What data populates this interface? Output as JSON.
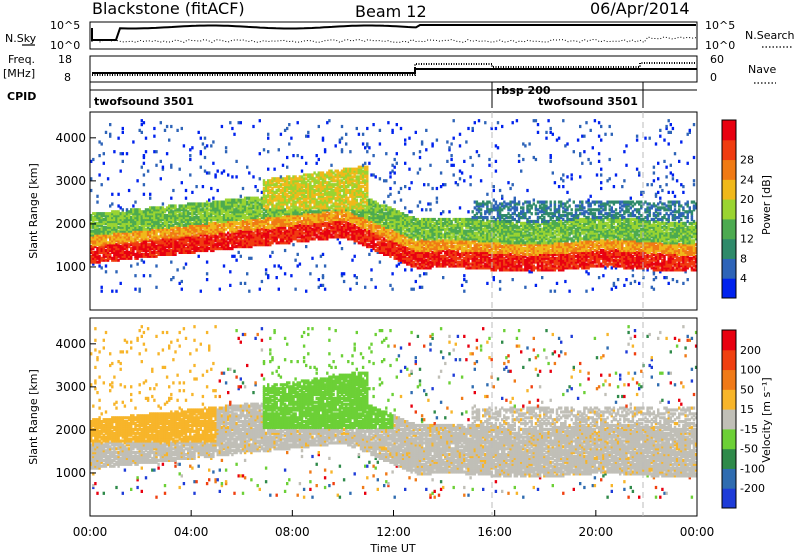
{
  "header": {
    "station": "Blackstone (fitACF)",
    "beam": "Beam 12",
    "date": "06/Apr/2014"
  },
  "strip_panels": {
    "left_labels": {
      "nsky": "N.Sky",
      "freq_line1": "Freq.",
      "freq_line2": "[MHz]",
      "cpid": "CPID"
    },
    "right_labels": {
      "nsearch": "N.Search",
      "nave": "Nave"
    },
    "noise_axis": {
      "left_ticks": [
        "10^5",
        "10^0"
      ],
      "right_ticks": [
        "10^5",
        "10^0"
      ]
    },
    "freq_axis": {
      "left_ticks": [
        "18",
        "8"
      ],
      "right_ticks": [
        "60",
        "0"
      ]
    },
    "cpid_segments": [
      {
        "label": "twofsound 3501",
        "start_hour": 0,
        "end_hour": 16
      },
      {
        "label": "rbsp 200",
        "start_hour": 16,
        "end_hour": 22
      },
      {
        "label": "twofsound 3501",
        "start_hour": 16,
        "end_hour": 22
      }
    ]
  },
  "chart_data": [
    {
      "type": "heatmap",
      "parameter": "power",
      "ylabel": "Slant Range [km]",
      "ylim": [
        0,
        4600
      ],
      "yticks": [
        1000,
        2000,
        3000,
        4000
      ],
      "xlim": [
        0,
        24
      ],
      "colorbar": {
        "label": "Power [dB]",
        "ticks": [
          "4",
          "8",
          "12",
          "16",
          "20",
          "24",
          "28"
        ],
        "colors": [
          "#0022ee",
          "#2e64b8",
          "#2f8a6a",
          "#4caa50",
          "#9ad431",
          "#f0b81a",
          "#f07a14",
          "#f03c10",
          "#e80010"
        ]
      },
      "features": [
        {
          "band": "main echo",
          "range_start_km": 1300,
          "range_peak_km": 1900,
          "hours": [
            0,
            12.5
          ]
        },
        {
          "band": "upper echo",
          "range_km": [
            2300,
            3300
          ],
          "hours": [
            7,
            11
          ]
        }
      ]
    },
    {
      "type": "heatmap",
      "parameter": "velocity",
      "ylabel": "Slant Range [km]",
      "xlabel": "Time UT",
      "ylim": [
        0,
        4600
      ],
      "yticks": [
        1000,
        2000,
        3000,
        4000
      ],
      "xlim": [
        0,
        24
      ],
      "xticks": [
        "00:00",
        "04:00",
        "08:00",
        "12:00",
        "16:00",
        "20:00",
        "00:00"
      ],
      "colorbar": {
        "label": "Velocity [m s⁻¹]",
        "ticks": [
          "200",
          "100",
          "50",
          "15",
          "-15",
          "-50",
          "-100",
          "-200"
        ],
        "colors": [
          "#1e3cd8",
          "#2f6cb0",
          "#2f8a4a",
          "#6cd036",
          "#c0bfb7",
          "#f7b52a",
          "#f07a18",
          "#f04010",
          "#e80010"
        ]
      }
    }
  ]
}
